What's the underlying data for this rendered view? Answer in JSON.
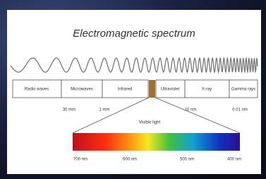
{
  "title": "Electromagnetic spectrum",
  "bands": [
    "Radio waves",
    "Microwaves",
    "Infrared",
    "Ultraviolet",
    "X-ray",
    "Gamma rays"
  ],
  "wavelength_marks": [
    "30 mm",
    "1 mm",
    "10 nm",
    "0.01 nm"
  ],
  "visible_label": "Visible light",
  "visible_scale": [
    "700 nm",
    "600 nm",
    "500 nm",
    "400 nm"
  ]
}
